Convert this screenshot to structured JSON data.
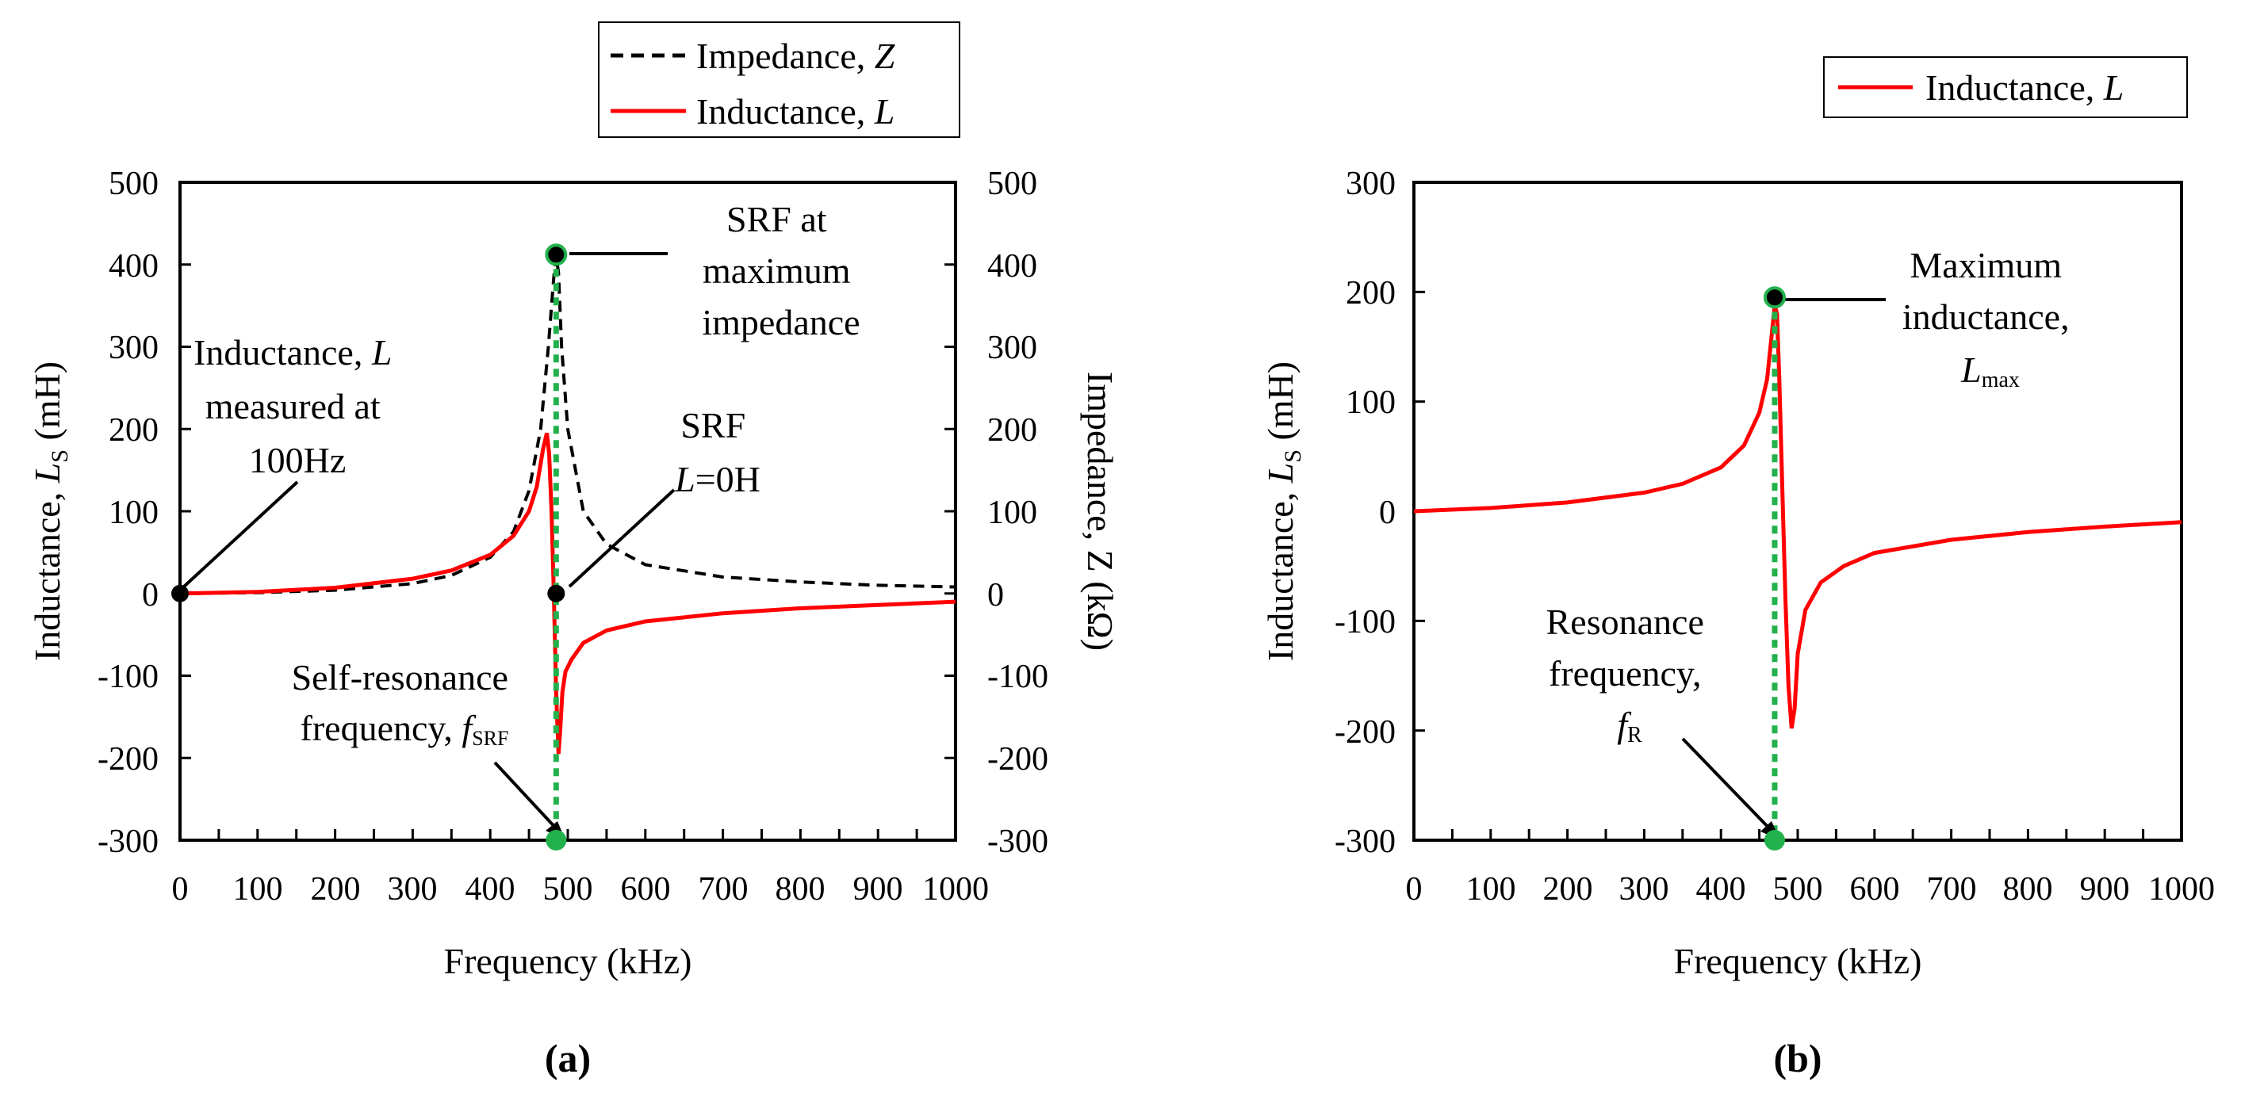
{
  "colors": {
    "impedance": "#000000",
    "inductance": "#ff0000",
    "marker_green": "#22b14c",
    "marker_black": "#000000"
  },
  "chart_data": [
    {
      "panel": "(a)",
      "panel_letter": "a",
      "type": "line",
      "xlabel": "Frequency (kHz)",
      "ylabel_main": "Inductance, ",
      "ylabel_var": "L",
      "ylabel_sub": "S",
      "ylabel_unit": " (mH)",
      "y2label": "Impedance, Z (kΩ)",
      "xlim": [
        0,
        1000
      ],
      "ylim": [
        -300,
        500
      ],
      "y2lim": [
        -300,
        500
      ],
      "x_ticks": [
        "0",
        "100",
        "200",
        "300",
        "400",
        "500",
        "600",
        "700",
        "800",
        "900",
        "1000"
      ],
      "y_ticks": [
        "500",
        "400",
        "300",
        "200",
        "100",
        "0",
        "-100",
        "-200",
        "-300"
      ],
      "y2_ticks": [
        "500",
        "400",
        "300",
        "200",
        "100",
        "0",
        "-100",
        "-200",
        "-300"
      ],
      "legend": [
        {
          "name": "Impedance, ",
          "var": "Z",
          "style": "dashed",
          "color": "#000000"
        },
        {
          "name": "Inductance, ",
          "var": "L",
          "style": "solid",
          "color": "#ff0000"
        }
      ],
      "series": [
        {
          "name": "Impedance, Z",
          "axis": "right",
          "color": "#000000",
          "style": "dashed",
          "x": [
            0,
            100,
            200,
            300,
            350,
            400,
            430,
            450,
            465,
            475,
            482,
            485,
            488,
            492,
            500,
            520,
            550,
            600,
            700,
            800,
            900,
            1000
          ],
          "values": [
            0,
            1,
            4,
            12,
            22,
            44,
            75,
            125,
            200,
            300,
            385,
            410,
            390,
            300,
            200,
            100,
            60,
            35,
            20,
            14,
            10,
            8
          ]
        },
        {
          "name": "Inductance, L",
          "axis": "left",
          "color": "#ff0000",
          "style": "solid",
          "x": [
            0,
            100,
            200,
            300,
            350,
            400,
            430,
            450,
            460,
            468,
            473,
            476,
            479,
            482,
            485,
            488,
            490,
            493,
            497,
            505,
            520,
            550,
            600,
            700,
            800,
            900,
            1000
          ],
          "values": [
            0,
            2,
            7,
            18,
            28,
            47,
            70,
            100,
            130,
            175,
            195,
            170,
            100,
            0,
            -120,
            -195,
            -170,
            -120,
            -95,
            -80,
            -60,
            -45,
            -34,
            -24,
            -18,
            -14,
            -10
          ]
        }
      ],
      "guide_line_x": 485,
      "points": [
        {
          "x": 0,
          "y": 0,
          "color": "black"
        },
        {
          "x": 485,
          "y": 0,
          "color": "black"
        },
        {
          "x": 485,
          "y": 412,
          "color": "black-green"
        },
        {
          "x": 485,
          "y": -300,
          "color": "green"
        }
      ],
      "annotations": [
        {
          "lines": [
            "Inductance, L",
            "measured at",
            "100Hz"
          ]
        },
        {
          "lines": [
            "SRF at",
            "maximum",
            "impedance"
          ]
        },
        {
          "lines": [
            "SRF",
            "L=0H"
          ]
        },
        {
          "lines": [
            "Self-resonance",
            "frequency, f"
          ],
          "sub": "SRF"
        }
      ]
    },
    {
      "panel": "(b)",
      "panel_letter": "b",
      "type": "line",
      "xlabel": "Frequency (kHz)",
      "ylabel_main": "Inductance, ",
      "ylabel_var": "L",
      "ylabel_sub": "S",
      "ylabel_unit": " (mH)",
      "xlim": [
        0,
        1000
      ],
      "ylim": [
        -300,
        300
      ],
      "x_ticks": [
        "0",
        "100",
        "200",
        "300",
        "400",
        "500",
        "600",
        "700",
        "800",
        "900",
        "1000"
      ],
      "y_ticks": [
        "300",
        "200",
        "100",
        "0",
        "-100",
        "-200",
        "-300"
      ],
      "legend": [
        {
          "name": "Inductance, ",
          "var": "L",
          "style": "solid",
          "color": "#ff0000"
        }
      ],
      "series": [
        {
          "name": "Inductance, L",
          "axis": "left",
          "color": "#ff0000",
          "style": "solid",
          "x": [
            0,
            100,
            200,
            300,
            350,
            400,
            430,
            450,
            460,
            466,
            470,
            473,
            476,
            480,
            484,
            488,
            492,
            496,
            500,
            510,
            530,
            560,
            600,
            700,
            800,
            900,
            1000
          ],
          "values": [
            0,
            3,
            8,
            17,
            25,
            40,
            60,
            90,
            120,
            160,
            188,
            180,
            120,
            20,
            -80,
            -160,
            -198,
            -180,
            -130,
            -90,
            -65,
            -50,
            -38,
            -26,
            -19,
            -14,
            -10
          ]
        }
      ],
      "guide_line_x": 470,
      "points": [
        {
          "x": 470,
          "y": 195,
          "color": "black-green"
        },
        {
          "x": 470,
          "y": -300,
          "color": "green"
        }
      ],
      "annotations": [
        {
          "lines": [
            "Maximum",
            "inductance,",
            "L"
          ],
          "sub": "max"
        },
        {
          "lines": [
            "Resonance",
            "frequency,",
            "f"
          ],
          "sub": "R"
        }
      ]
    }
  ]
}
